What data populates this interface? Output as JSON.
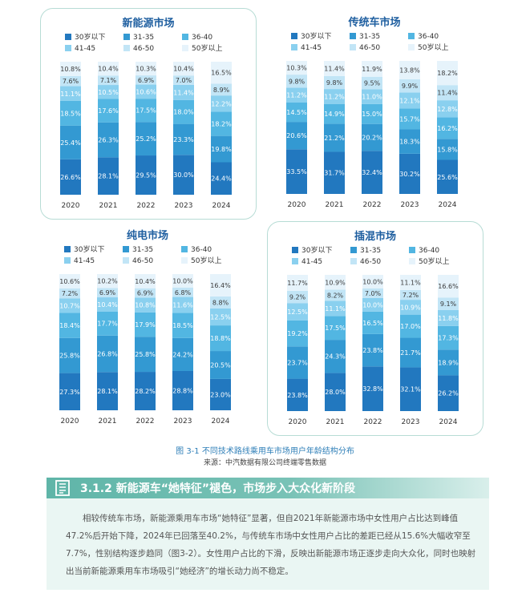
{
  "legend_labels": [
    "30岁以下",
    "31-35",
    "36-40",
    "41-45",
    "46-50",
    "50岁以上"
  ],
  "series_colors": [
    "#2278bf",
    "#3399d2",
    "#52b6e2",
    "#8ad0ef",
    "#c2e5f6",
    "#e6f3fb"
  ],
  "chart_data": [
    {
      "type": "bar",
      "stacked": true,
      "title": "新能源市场",
      "categories": [
        "2020",
        "2021",
        "2022",
        "2023",
        "2024"
      ],
      "series": [
        {
          "name": "30岁以下",
          "values": [
            26.6,
            28.1,
            29.5,
            30.0,
            24.4
          ]
        },
        {
          "name": "31-35",
          "values": [
            25.4,
            26.3,
            25.2,
            23.3,
            19.8
          ]
        },
        {
          "name": "36-40",
          "values": [
            18.5,
            17.6,
            17.5,
            18.0,
            18.2
          ]
        },
        {
          "name": "41-45",
          "values": [
            11.1,
            10.5,
            10.6,
            11.4,
            12.2
          ]
        },
        {
          "name": "46-50",
          "values": [
            7.6,
            7.1,
            6.9,
            7.0,
            8.9
          ]
        },
        {
          "name": "50岁以上",
          "values": [
            10.8,
            10.4,
            10.3,
            10.4,
            16.5
          ]
        }
      ],
      "ylim": [
        0,
        100
      ]
    },
    {
      "type": "bar",
      "stacked": true,
      "title": "传统车市场",
      "categories": [
        "2020",
        "2021",
        "2022",
        "2023",
        "2024"
      ],
      "series": [
        {
          "name": "30岁以下",
          "values": [
            33.5,
            31.7,
            32.4,
            30.2,
            25.6
          ]
        },
        {
          "name": "31-35",
          "values": [
            20.6,
            21.2,
            20.2,
            18.3,
            15.8
          ]
        },
        {
          "name": "36-40",
          "values": [
            14.5,
            14.9,
            15.0,
            15.7,
            16.2
          ]
        },
        {
          "name": "41-45",
          "values": [
            11.2,
            11.2,
            11.0,
            12.1,
            12.8
          ]
        },
        {
          "name": "46-50",
          "values": [
            9.8,
            9.8,
            9.5,
            9.9,
            11.4
          ]
        },
        {
          "name": "50岁以上",
          "values": [
            10.3,
            11.4,
            11.9,
            13.8,
            18.2
          ]
        }
      ],
      "ylim": [
        0,
        100
      ]
    },
    {
      "type": "bar",
      "stacked": true,
      "title": "纯电市场",
      "categories": [
        "2020",
        "2021",
        "2022",
        "2023",
        "2024"
      ],
      "series": [
        {
          "name": "30岁以下",
          "values": [
            27.3,
            28.1,
            28.2,
            28.8,
            23.0
          ]
        },
        {
          "name": "31-35",
          "values": [
            25.8,
            26.8,
            25.8,
            24.2,
            20.5
          ]
        },
        {
          "name": "36-40",
          "values": [
            18.4,
            17.7,
            17.9,
            18.5,
            18.8
          ]
        },
        {
          "name": "41-45",
          "values": [
            10.7,
            10.4,
            10.8,
            11.6,
            12.5
          ]
        },
        {
          "name": "46-50",
          "values": [
            7.2,
            6.9,
            6.9,
            6.8,
            8.8
          ]
        },
        {
          "name": "50岁以上",
          "values": [
            10.6,
            10.2,
            10.4,
            10.0,
            16.4
          ]
        }
      ],
      "ylim": [
        0,
        100
      ]
    },
    {
      "type": "bar",
      "stacked": true,
      "title": "插混市场",
      "categories": [
        "2020",
        "2021",
        "2022",
        "2023",
        "2024"
      ],
      "series": [
        {
          "name": "30岁以下",
          "values": [
            23.8,
            28.0,
            32.8,
            32.1,
            26.2
          ]
        },
        {
          "name": "31-35",
          "values": [
            23.7,
            24.3,
            23.8,
            21.7,
            18.9
          ]
        },
        {
          "name": "36-40",
          "values": [
            19.2,
            17.5,
            16.5,
            17.0,
            17.3
          ]
        },
        {
          "name": "41-45",
          "values": [
            12.5,
            11.1,
            10.0,
            10.9,
            11.8
          ]
        },
        {
          "name": "46-50",
          "values": [
            9.2,
            8.2,
            7.0,
            7.2,
            9.1
          ]
        },
        {
          "name": "50岁以上",
          "values": [
            11.7,
            10.9,
            10.0,
            11.1,
            16.6
          ]
        }
      ],
      "ylim": [
        0,
        100
      ]
    }
  ],
  "figure_caption": "图 3-1  不同技术路线乘用车市场用户年龄结构分布",
  "figure_source": "来源：中汽数据有限公司终端零售数据",
  "section": {
    "icon": "document-icon",
    "title": "3.1.2 新能源车“她特征”褪色，市场步入大众化新阶段",
    "body": "相较传统车市场，新能源乘用车市场“她特征”显著，但自2021年新能源市场中女性用户占比达到峰值47.2%后开始下降，2024年已回落至40.2%，与传统车市场中女性用户占比的差距已经从15.6%大幅收窄至7.7%，性别结构逐步趋同（图3-2）。女性用户占比的下滑，反映出新能源市场正逐步走向大众化，同时也映射出当前新能源乘用车市场吸引“她经济”的增长动力尚不稳定。"
  }
}
